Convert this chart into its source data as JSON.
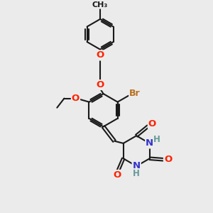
{
  "bg_color": "#ebebeb",
  "bond_color": "#1a1a1a",
  "bond_width": 1.5,
  "atom_colors": {
    "O": "#ff2200",
    "N": "#3333cc",
    "Br": "#b87020",
    "H": "#669999",
    "C": "#1a1a1a"
  },
  "figsize": [
    3.0,
    3.0
  ],
  "dpi": 100
}
